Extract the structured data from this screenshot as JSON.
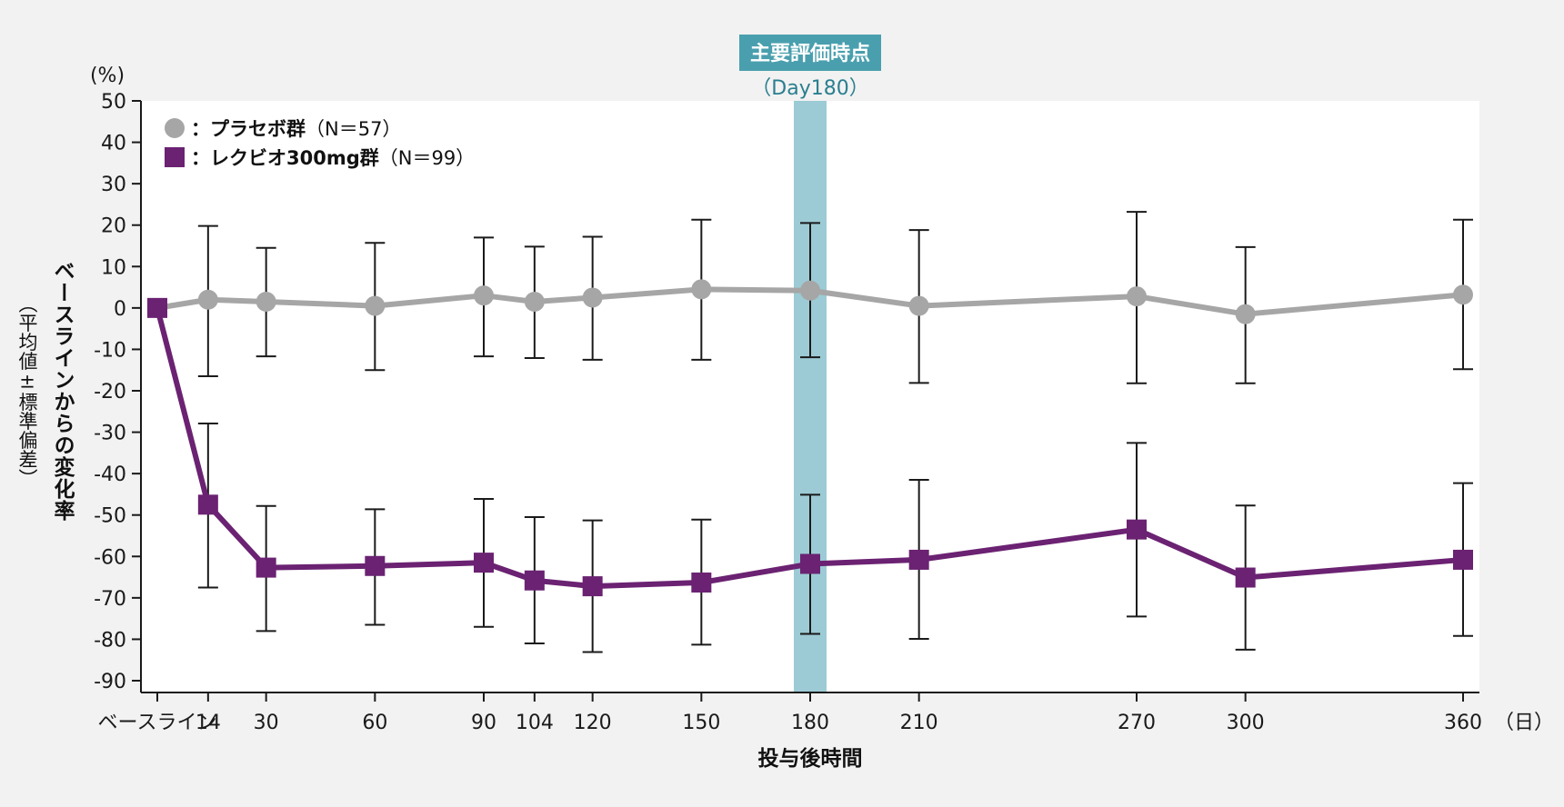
{
  "chart_data": {
    "type": "line",
    "y_unit": "(%)",
    "x_unit": "（日）",
    "xlabel": "投与後時間",
    "ylabel": "ベースラインからの変化率",
    "ylabel_sub": "（平均値±標準偏差）",
    "ylim": [
      -90,
      50
    ],
    "yticks": [
      50,
      40,
      30,
      20,
      10,
      0,
      -10,
      -20,
      -30,
      -40,
      -50,
      -60,
      -70,
      -80,
      -90
    ],
    "x": [
      0,
      14,
      30,
      60,
      90,
      104,
      120,
      150,
      180,
      210,
      270,
      300,
      360
    ],
    "x_tick_labels": [
      "ベースライン",
      "14",
      "30",
      "60",
      "90",
      "104",
      "120",
      "150",
      "180",
      "210",
      "270",
      "300",
      "360"
    ],
    "highlight": {
      "x": 180,
      "label": "主要評価時点",
      "sublabel": "（Day180）",
      "color": "#9ccbd5",
      "badge_color": "#4a9fae"
    },
    "legend": {
      "position": "top-left"
    },
    "series": [
      {
        "name": "プラセボ群",
        "name_prefix": "：",
        "n_label": "（N＝57）",
        "marker": "circle",
        "color": "#a6a6a6",
        "values": [
          0,
          2,
          1.5,
          0.5,
          3,
          1.5,
          2.5,
          4.5,
          4.2,
          0.5,
          2.8,
          -1.5,
          3.2
        ],
        "err_upper": [
          0,
          19.8,
          14.5,
          15.7,
          17,
          14.8,
          17.2,
          21.3,
          20.5,
          18.8,
          23.2,
          14.7,
          21.3
        ],
        "err_lower": [
          0,
          -16.5,
          -11.7,
          -15,
          -11.7,
          -12.1,
          -12.5,
          -12.5,
          -11.9,
          -18.1,
          -18.2,
          -18.2,
          -14.8
        ]
      },
      {
        "name": "レクビオ300mg群",
        "name_prefix": "：",
        "n_label": "（N＝99）",
        "marker": "square",
        "color": "#6b2272",
        "values": [
          0,
          -47.5,
          -62.7,
          -62.3,
          -61.5,
          -65.8,
          -67.2,
          -66.3,
          -61.8,
          -60.8,
          -53.5,
          -65.1,
          -60.8
        ],
        "err_upper": [
          0,
          -27.9,
          -47.8,
          -48.6,
          -46.1,
          -50.5,
          -51.3,
          -51.1,
          -45.1,
          -41.5,
          -32.6,
          -47.7,
          -42.3
        ],
        "err_lower": [
          0,
          -67.5,
          -78,
          -76.5,
          -77,
          -81,
          -83.1,
          -81.3,
          -78.7,
          -79.9,
          -74.5,
          -82.5,
          -79.2
        ]
      }
    ]
  }
}
